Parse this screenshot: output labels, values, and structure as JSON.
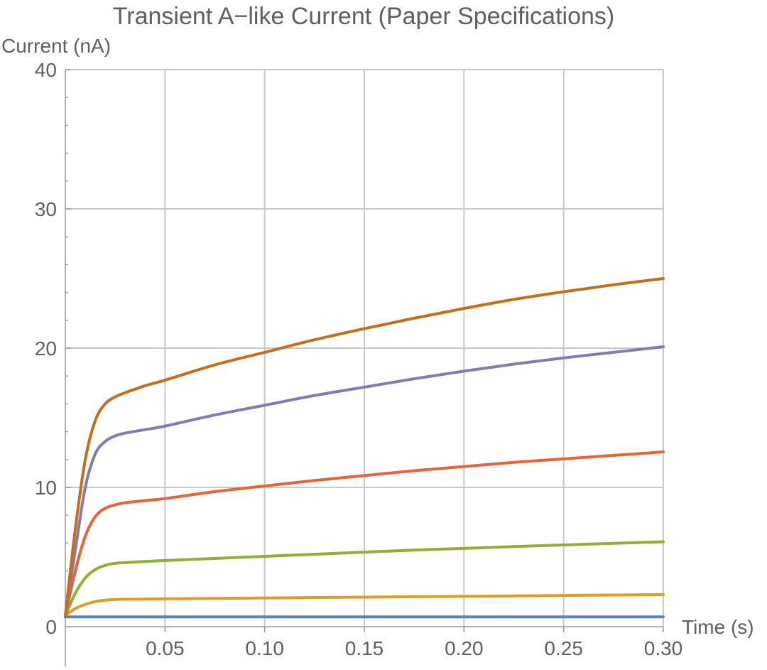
{
  "chart_data": {
    "type": "line",
    "title": "Transient A−like Current (Paper Specifications)",
    "xlabel": "Time (s)",
    "ylabel": "Current (nA)",
    "xlim": [
      0,
      0.3
    ],
    "ylim": [
      0,
      40
    ],
    "x_ticks": [
      0.05,
      0.1,
      0.15,
      0.2,
      0.25,
      0.3
    ],
    "x_tick_labels": [
      "0.05",
      "0.10",
      "0.15",
      "0.20",
      "0.25",
      "0.30"
    ],
    "y_ticks": [
      0,
      10,
      20,
      30,
      40
    ],
    "y_tick_labels": [
      "0",
      "10",
      "20",
      "30",
      "40"
    ],
    "grid": true,
    "legend": "none",
    "x": [
      0,
      0.005,
      0.01,
      0.015,
      0.02,
      0.025,
      0.03,
      0.04,
      0.05,
      0.075,
      0.1,
      0.125,
      0.15,
      0.175,
      0.2,
      0.225,
      0.25,
      0.275,
      0.3
    ],
    "series": [
      {
        "color": "#5e81b5",
        "values": [
          0.7,
          0.7,
          0.7,
          0.7,
          0.7,
          0.7,
          0.7,
          0.7,
          0.7,
          0.7,
          0.7,
          0.7,
          0.7,
          0.7,
          0.7,
          0.7,
          0.7,
          0.7,
          0.7
        ]
      },
      {
        "color": "#e19c24",
        "values": [
          0.8,
          1.3,
          1.6,
          1.8,
          1.9,
          1.95,
          1.97,
          1.98,
          2.0,
          2.03,
          2.06,
          2.09,
          2.12,
          2.15,
          2.18,
          2.21,
          2.24,
          2.27,
          2.3
        ]
      },
      {
        "color": "#8fb032",
        "values": [
          0.8,
          2.4,
          3.5,
          4.1,
          4.4,
          4.55,
          4.6,
          4.68,
          4.75,
          4.9,
          5.05,
          5.2,
          5.35,
          5.5,
          5.62,
          5.75,
          5.87,
          5.98,
          6.1
        ]
      },
      {
        "color": "#eb6235",
        "values": [
          0.8,
          4.0,
          6.5,
          7.9,
          8.5,
          8.75,
          8.9,
          9.05,
          9.2,
          9.7,
          10.1,
          10.5,
          10.85,
          11.2,
          11.5,
          11.8,
          12.05,
          12.3,
          12.55
        ]
      },
      {
        "color": "#8778b3",
        "values": [
          0.8,
          5.5,
          10.0,
          12.4,
          13.3,
          13.7,
          13.9,
          14.15,
          14.4,
          15.2,
          15.9,
          16.6,
          17.2,
          17.8,
          18.35,
          18.85,
          19.3,
          19.7,
          20.1
        ]
      },
      {
        "color": "#c56e1a",
        "values": [
          0.8,
          7.0,
          12.0,
          14.8,
          16.0,
          16.5,
          16.8,
          17.3,
          17.7,
          18.8,
          19.7,
          20.6,
          21.4,
          22.15,
          22.85,
          23.5,
          24.05,
          24.55,
          25.0
        ]
      }
    ]
  }
}
